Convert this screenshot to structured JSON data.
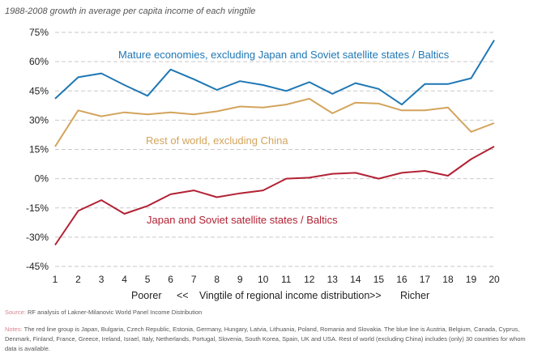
{
  "subtitle": "1988-2008 growth in average per capita income of each vingtile",
  "colors": {
    "blue": "#1f77b4",
    "gold": "#d3a45c",
    "red": "#b22234",
    "grid": "#c9c9c9",
    "axis_text": "#222222",
    "note_text": "#555555",
    "note_label": "#d9848f"
  },
  "chart_data": {
    "type": "line",
    "title": "1988-2008 growth in average per capita income of each vingtile",
    "x": [
      1,
      2,
      3,
      4,
      5,
      6,
      7,
      8,
      9,
      10,
      11,
      12,
      13,
      14,
      15,
      16,
      17,
      18,
      19,
      20
    ],
    "xlim": [
      1,
      20
    ],
    "ylim": [
      -45,
      75
    ],
    "yticks": [
      -45,
      -30,
      -15,
      0,
      15,
      30,
      45,
      60,
      75
    ],
    "ytick_labels": [
      "-45%",
      "-30%",
      "-15%",
      "0%",
      "15%",
      "30%",
      "45%",
      "60%",
      "75%"
    ],
    "xtick_labels": [
      "1",
      "2",
      "3",
      "4",
      "5",
      "6",
      "7",
      "8",
      "9",
      "10",
      "11",
      "12",
      "13",
      "14",
      "15",
      "16",
      "17",
      "18",
      "19",
      "20"
    ],
    "xlabel_parts": {
      "left": "Poorer",
      "left_arrows": "<<",
      "center": "Vingtile of regional income distribution",
      "right_arrows": ">>",
      "right": "Richer"
    },
    "grid": true,
    "grid_style": "dashed horizontal",
    "series": [
      {
        "name": "Mature economies, excluding Japan and Soviet satellite states / Baltics",
        "color_key": "blue",
        "values": [
          41,
          52,
          54,
          48,
          42.5,
          56,
          51,
          45.5,
          50,
          48,
          45,
          49.5,
          43.5,
          49,
          46,
          38,
          48.5,
          48.5,
          51.5,
          71
        ]
      },
      {
        "name": "Rest of world, excluding China",
        "color_key": "gold",
        "values": [
          16.5,
          35,
          32,
          34,
          33,
          34,
          33,
          34.5,
          37,
          36.5,
          38,
          41,
          33.5,
          39,
          38.5,
          35,
          35,
          36.5,
          24,
          28.5
        ]
      },
      {
        "name": "Japan and Soviet satellite states / Baltics",
        "color_key": "red",
        "values": [
          -34,
          -16.5,
          -11,
          -18,
          -14,
          -8,
          -6,
          -9.5,
          -7.5,
          -6,
          0,
          0.5,
          2.5,
          3,
          0,
          3,
          4,
          1.5,
          10,
          16.5
        ]
      }
    ]
  },
  "source": {
    "label": "Source:",
    "text": "RF analysis of Lakner-Milanovic World Panel Income Distribution"
  },
  "notes": {
    "label": "Notes:",
    "text": "The red line group is Japan, Bulgaria, Czech Republic, Estonia, Germany, Hungary, Latvia, Lithuania, Poland, Romania and Slovakia. The blue line is Austria, Belgium, Canada, Cyprus, Denmark, Finland, France, Greece, Ireland, Israel, Italy, Netherlands, Portugal, Slovenia, South Korea, Spain, UK and USA. Rest of world (excluding China) includes (only) 30 countries for whom data is available."
  }
}
